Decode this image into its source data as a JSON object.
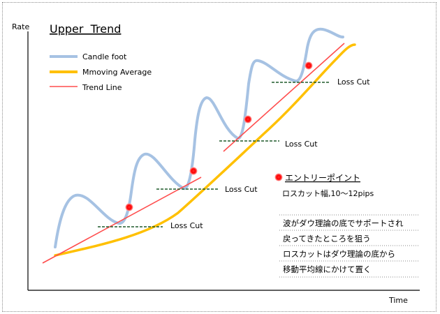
{
  "chart_data": {
    "type": "line",
    "title": "Upper  Trend",
    "xlabel": "Time",
    "ylabel": "Rate",
    "legend": {
      "placement": "top-left",
      "entries": [
        {
          "label": "Candle foot",
          "color": "#a6c2e3"
        },
        {
          "label": "Mmoving Average",
          "color": "#ffc000"
        },
        {
          "label": "Trend Line",
          "color": "#ff4d4d"
        }
      ]
    },
    "loss_cut_label": "Loss Cut",
    "entry_legend": "エントリーポイント",
    "stop_width": "ロスカット幅,10～12pips",
    "notes": [
      "波がダウ理論の底でサポートされ",
      "戻ってきたところを狙う",
      "ロスカットはダウ理論の底から",
      "移動平均線にかけて置く"
    ],
    "colors": {
      "candle": "#a6c2e3",
      "ma": "#ffc000",
      "trend": "#ff4d4d",
      "entry": "#ff0000",
      "losscut": "#1f5a2a"
    }
  }
}
